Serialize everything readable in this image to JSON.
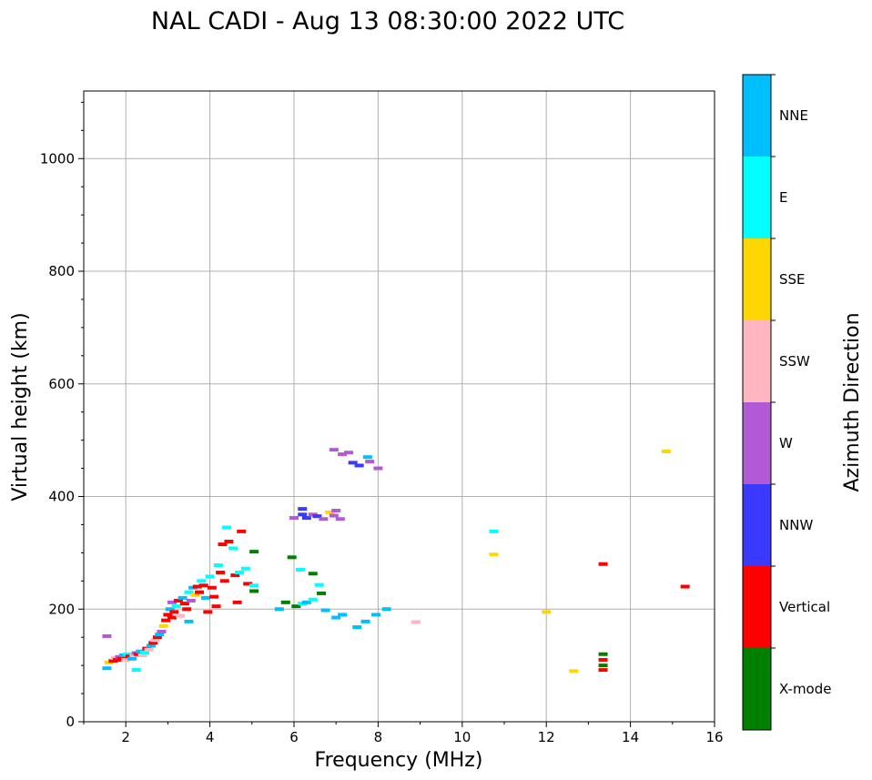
{
  "chart_data": {
    "type": "scatter",
    "title": "NAL CADI - Aug 13 08:30:00 2022 UTC",
    "xlabel": "Frequency (MHz)",
    "ylabel": "Virtual height (km)",
    "xlim": [
      1,
      16
    ],
    "ylim": [
      0,
      1120
    ],
    "xticks": [
      2,
      4,
      6,
      8,
      10,
      12,
      14,
      16
    ],
    "yticks": [
      0,
      200,
      400,
      600,
      800,
      1000
    ],
    "grid": true,
    "colorbar": {
      "label": "Azimuth Direction",
      "categories": [
        {
          "name": "X-mode",
          "color": "#008000"
        },
        {
          "name": "Vertical",
          "color": "#ff0000"
        },
        {
          "name": "NNW",
          "color": "#3a3aff"
        },
        {
          "name": "W",
          "color": "#b25ad6"
        },
        {
          "name": "SSW",
          "color": "#ffb6c1"
        },
        {
          "name": "SSE",
          "color": "#ffd700"
        },
        {
          "name": "E",
          "color": "#00ffff"
        },
        {
          "name": "NNE",
          "color": "#00bfff"
        }
      ]
    },
    "points": [
      {
        "f": 1.55,
        "h": 152,
        "d": "W"
      },
      {
        "f": 1.55,
        "h": 95,
        "d": "NNE"
      },
      {
        "f": 1.6,
        "h": 105,
        "d": "SSE"
      },
      {
        "f": 1.7,
        "h": 108,
        "d": "Vertical"
      },
      {
        "f": 1.75,
        "h": 113,
        "d": "SSW"
      },
      {
        "f": 1.8,
        "h": 110,
        "d": "Vertical"
      },
      {
        "f": 1.85,
        "h": 115,
        "d": "W"
      },
      {
        "f": 1.9,
        "h": 112,
        "d": "Vertical"
      },
      {
        "f": 1.95,
        "h": 118,
        "d": "NNE"
      },
      {
        "f": 2.0,
        "h": 110,
        "d": "SSW"
      },
      {
        "f": 2.05,
        "h": 120,
        "d": "E"
      },
      {
        "f": 2.1,
        "h": 116,
        "d": "Vertical"
      },
      {
        "f": 2.15,
        "h": 112,
        "d": "NNE"
      },
      {
        "f": 2.2,
        "h": 118,
        "d": "SSW"
      },
      {
        "f": 2.25,
        "h": 122,
        "d": "W"
      },
      {
        "f": 2.25,
        "h": 92,
        "d": "E"
      },
      {
        "f": 2.3,
        "h": 120,
        "d": "Vertical"
      },
      {
        "f": 2.35,
        "h": 125,
        "d": "NNE"
      },
      {
        "f": 2.4,
        "h": 118,
        "d": "SSW"
      },
      {
        "f": 2.45,
        "h": 123,
        "d": "E"
      },
      {
        "f": 2.5,
        "h": 130,
        "d": "Vertical"
      },
      {
        "f": 2.55,
        "h": 128,
        "d": "SSW"
      },
      {
        "f": 2.6,
        "h": 135,
        "d": "NNE"
      },
      {
        "f": 2.65,
        "h": 140,
        "d": "Vertical"
      },
      {
        "f": 2.7,
        "h": 145,
        "d": "SSW"
      },
      {
        "f": 2.75,
        "h": 150,
        "d": "Vertical"
      },
      {
        "f": 2.8,
        "h": 155,
        "d": "NNE"
      },
      {
        "f": 2.85,
        "h": 160,
        "d": "W"
      },
      {
        "f": 2.9,
        "h": 170,
        "d": "SSE"
      },
      {
        "f": 2.95,
        "h": 180,
        "d": "Vertical"
      },
      {
        "f": 3.0,
        "h": 190,
        "d": "Vertical"
      },
      {
        "f": 3.05,
        "h": 200,
        "d": "NNE"
      },
      {
        "f": 3.1,
        "h": 185,
        "d": "Vertical"
      },
      {
        "f": 3.1,
        "h": 212,
        "d": "W"
      },
      {
        "f": 3.15,
        "h": 195,
        "d": "Vertical"
      },
      {
        "f": 3.2,
        "h": 205,
        "d": "E"
      },
      {
        "f": 3.25,
        "h": 215,
        "d": "Vertical"
      },
      {
        "f": 3.3,
        "h": 188,
        "d": "SSW"
      },
      {
        "f": 3.35,
        "h": 220,
        "d": "NNE"
      },
      {
        "f": 3.4,
        "h": 210,
        "d": "Vertical"
      },
      {
        "f": 3.45,
        "h": 200,
        "d": "Vertical"
      },
      {
        "f": 3.5,
        "h": 230,
        "d": "E"
      },
      {
        "f": 3.5,
        "h": 178,
        "d": "NNE"
      },
      {
        "f": 3.55,
        "h": 215,
        "d": "W"
      },
      {
        "f": 3.6,
        "h": 238,
        "d": "NNE"
      },
      {
        "f": 3.65,
        "h": 225,
        "d": "SSE"
      },
      {
        "f": 3.7,
        "h": 240,
        "d": "Vertical"
      },
      {
        "f": 3.75,
        "h": 230,
        "d": "Vertical"
      },
      {
        "f": 3.8,
        "h": 250,
        "d": "E"
      },
      {
        "f": 3.85,
        "h": 242,
        "d": "Vertical"
      },
      {
        "f": 3.9,
        "h": 220,
        "d": "NNE"
      },
      {
        "f": 3.95,
        "h": 195,
        "d": "Vertical"
      },
      {
        "f": 4.0,
        "h": 258,
        "d": "E"
      },
      {
        "f": 4.05,
        "h": 238,
        "d": "Vertical"
      },
      {
        "f": 4.1,
        "h": 222,
        "d": "Vertical"
      },
      {
        "f": 4.15,
        "h": 205,
        "d": "Vertical"
      },
      {
        "f": 4.2,
        "h": 278,
        "d": "E"
      },
      {
        "f": 4.25,
        "h": 265,
        "d": "Vertical"
      },
      {
        "f": 4.3,
        "h": 315,
        "d": "Vertical"
      },
      {
        "f": 4.35,
        "h": 250,
        "d": "Vertical"
      },
      {
        "f": 4.4,
        "h": 345,
        "d": "E"
      },
      {
        "f": 4.45,
        "h": 320,
        "d": "Vertical"
      },
      {
        "f": 4.55,
        "h": 308,
        "d": "E"
      },
      {
        "f": 4.6,
        "h": 260,
        "d": "Vertical"
      },
      {
        "f": 4.65,
        "h": 212,
        "d": "Vertical"
      },
      {
        "f": 4.7,
        "h": 265,
        "d": "E"
      },
      {
        "f": 4.75,
        "h": 338,
        "d": "Vertical"
      },
      {
        "f": 4.85,
        "h": 272,
        "d": "E"
      },
      {
        "f": 4.9,
        "h": 245,
        "d": "Vertical"
      },
      {
        "f": 5.05,
        "h": 302,
        "d": "X-mode"
      },
      {
        "f": 5.05,
        "h": 242,
        "d": "E"
      },
      {
        "f": 5.05,
        "h": 232,
        "d": "X-mode"
      },
      {
        "f": 5.65,
        "h": 200,
        "d": "NNE"
      },
      {
        "f": 5.8,
        "h": 212,
        "d": "X-mode"
      },
      {
        "f": 5.95,
        "h": 292,
        "d": "X-mode"
      },
      {
        "f": 6.05,
        "h": 205,
        "d": "X-mode"
      },
      {
        "f": 6.15,
        "h": 270,
        "d": "E"
      },
      {
        "f": 6.2,
        "h": 210,
        "d": "E"
      },
      {
        "f": 6.3,
        "h": 212,
        "d": "NNE"
      },
      {
        "f": 6.45,
        "h": 217,
        "d": "E"
      },
      {
        "f": 6.45,
        "h": 263,
        "d": "X-mode"
      },
      {
        "f": 6.6,
        "h": 243,
        "d": "E"
      },
      {
        "f": 6.65,
        "h": 228,
        "d": "X-mode"
      },
      {
        "f": 6.75,
        "h": 198,
        "d": "NNE"
      },
      {
        "f": 6.0,
        "h": 362,
        "d": "W"
      },
      {
        "f": 6.2,
        "h": 368,
        "d": "NNW"
      },
      {
        "f": 6.3,
        "h": 362,
        "d": "NNW"
      },
      {
        "f": 6.2,
        "h": 378,
        "d": "NNW"
      },
      {
        "f": 6.45,
        "h": 368,
        "d": "W"
      },
      {
        "f": 6.55,
        "h": 365,
        "d": "NNW"
      },
      {
        "f": 6.7,
        "h": 360,
        "d": "W"
      },
      {
        "f": 6.85,
        "h": 372,
        "d": "SSE"
      },
      {
        "f": 6.95,
        "h": 366,
        "d": "W"
      },
      {
        "f": 7.0,
        "h": 375,
        "d": "W"
      },
      {
        "f": 7.1,
        "h": 360,
        "d": "W"
      },
      {
        "f": 6.95,
        "h": 483,
        "d": "W"
      },
      {
        "f": 7.15,
        "h": 475,
        "d": "W"
      },
      {
        "f": 7.3,
        "h": 478,
        "d": "W"
      },
      {
        "f": 7.4,
        "h": 460,
        "d": "NNW"
      },
      {
        "f": 7.55,
        "h": 455,
        "d": "NNW"
      },
      {
        "f": 7.75,
        "h": 470,
        "d": "NNE"
      },
      {
        "f": 7.8,
        "h": 462,
        "d": "W"
      },
      {
        "f": 8.0,
        "h": 450,
        "d": "W"
      },
      {
        "f": 7.0,
        "h": 185,
        "d": "NNE"
      },
      {
        "f": 7.15,
        "h": 190,
        "d": "NNE"
      },
      {
        "f": 7.5,
        "h": 168,
        "d": "NNE"
      },
      {
        "f": 7.7,
        "h": 178,
        "d": "NNE"
      },
      {
        "f": 7.95,
        "h": 190,
        "d": "NNE"
      },
      {
        "f": 8.2,
        "h": 200,
        "d": "NNE"
      },
      {
        "f": 8.9,
        "h": 177,
        "d": "SSW"
      },
      {
        "f": 10.75,
        "h": 338,
        "d": "E"
      },
      {
        "f": 10.75,
        "h": 297,
        "d": "SSE"
      },
      {
        "f": 12.0,
        "h": 195,
        "d": "SSE"
      },
      {
        "f": 12.65,
        "h": 90,
        "d": "SSE"
      },
      {
        "f": 13.35,
        "h": 280,
        "d": "Vertical"
      },
      {
        "f": 13.35,
        "h": 120,
        "d": "X-mode"
      },
      {
        "f": 13.35,
        "h": 110,
        "d": "Vertical"
      },
      {
        "f": 13.35,
        "h": 100,
        "d": "X-mode"
      },
      {
        "f": 13.35,
        "h": 92,
        "d": "Vertical"
      },
      {
        "f": 14.85,
        "h": 480,
        "d": "SSE"
      },
      {
        "f": 15.3,
        "h": 240,
        "d": "Vertical"
      }
    ]
  }
}
